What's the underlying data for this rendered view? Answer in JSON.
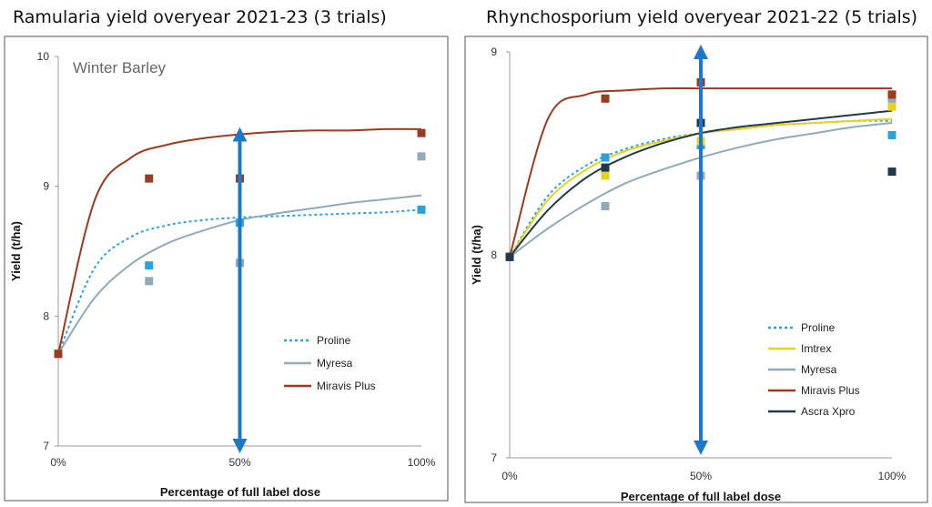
{
  "chart_data": [
    {
      "type": "line",
      "title": "Ramularia yield overyear 2021-23 (3 trials)",
      "annotation": "Winter Barley",
      "xlabel": "Percentage of full label dose",
      "ylabel": "Yield (t/ha)",
      "xlim": [
        0,
        100
      ],
      "ylim": [
        7,
        10
      ],
      "x_ticks": [
        0,
        50,
        100
      ],
      "x_tick_labels": [
        "0%",
        "50%",
        "100%"
      ],
      "y_ticks": [
        7,
        8,
        9,
        10
      ],
      "y_tick_labels": [
        "7",
        "8",
        "9",
        "10"
      ],
      "legend_position": "bottom-right",
      "reference_line": {
        "x": 50,
        "y_range": [
          7,
          9.4
        ],
        "style": "double-arrow",
        "color": "#1a78cf"
      },
      "series": [
        {
          "name": "Proline",
          "color": "#2aa3dc",
          "dash": true,
          "x": [
            0,
            25,
            50,
            100
          ],
          "points": [
            7.71,
            8.39,
            8.72,
            8.82
          ],
          "curve": [
            7.71,
            8.37,
            8.61,
            8.7,
            8.74,
            8.76,
            8.77,
            8.78,
            8.79,
            8.8,
            8.82
          ]
        },
        {
          "name": "Myresa",
          "color": "#8eaabb",
          "dash": false,
          "x": [
            0,
            25,
            50,
            100
          ],
          "points": [
            7.71,
            8.27,
            8.41,
            9.23
          ],
          "curve": [
            7.71,
            8.14,
            8.4,
            8.56,
            8.66,
            8.74,
            8.79,
            8.83,
            8.87,
            8.9,
            8.93
          ]
        },
        {
          "name": "Miravis Plus",
          "color": "#9b3b1e",
          "dash": false,
          "x": [
            0,
            25,
            50,
            100
          ],
          "points": [
            7.71,
            9.06,
            9.06,
            9.41
          ],
          "curve": [
            7.71,
            8.89,
            9.22,
            9.32,
            9.37,
            9.4,
            9.42,
            9.43,
            9.43,
            9.44,
            9.44
          ]
        }
      ]
    },
    {
      "type": "line",
      "title": "Rhynchosporium yield overyear 2021-22 (5 trials)",
      "annotation": "",
      "xlabel": "Percentage of full label dose",
      "ylabel": "Yield (t/ha)",
      "xlim": [
        0,
        100
      ],
      "ylim": [
        7,
        9
      ],
      "x_ticks": [
        0,
        50,
        100
      ],
      "x_tick_labels": [
        "0%",
        "50%",
        "100%"
      ],
      "y_ticks": [
        7,
        8,
        9
      ],
      "y_tick_labels": [
        "7",
        "8",
        "9"
      ],
      "legend_position": "bottom-right",
      "reference_line": {
        "x": 50,
        "y_range": [
          7.05,
          9.0
        ],
        "style": "double-arrow",
        "color": "#1a78cf"
      },
      "series": [
        {
          "name": "Proline",
          "color": "#2aa3dc",
          "dash": true,
          "x": [
            0,
            25,
            50,
            100
          ],
          "points": [
            7.99,
            8.48,
            8.54,
            8.59
          ],
          "curve": [
            7.99,
            8.29,
            8.44,
            8.52,
            8.57,
            8.6,
            8.62,
            8.64,
            8.65,
            8.66,
            8.66
          ]
        },
        {
          "name": "Imtrex",
          "color": "#e8d21f",
          "dash": false,
          "x": [
            0,
            25,
            50,
            100
          ],
          "points": [
            7.99,
            8.39,
            8.56,
            8.73
          ],
          "curve": [
            7.99,
            8.27,
            8.42,
            8.51,
            8.56,
            8.6,
            8.62,
            8.64,
            8.65,
            8.66,
            8.67
          ]
        },
        {
          "name": "Myresa",
          "color": "#8eaabb",
          "dash": false,
          "x": [
            0,
            25,
            50,
            100
          ],
          "points": [
            7.99,
            8.24,
            8.39,
            8.77
          ],
          "curve": [
            7.99,
            8.13,
            8.25,
            8.35,
            8.42,
            8.48,
            8.53,
            8.57,
            8.6,
            8.63,
            8.65
          ]
        },
        {
          "name": "Miravis Plus",
          "color": "#9b3b1e",
          "dash": false,
          "x": [
            0,
            25,
            50,
            100
          ],
          "points": [
            7.99,
            8.77,
            8.85,
            8.79
          ],
          "curve": [
            7.99,
            8.67,
            8.79,
            8.81,
            8.82,
            8.82,
            8.82,
            8.82,
            8.82,
            8.82,
            8.82
          ]
        },
        {
          "name": "Ascra Xpro",
          "color": "#203a4c",
          "dash": false,
          "x": [
            0,
            25,
            50,
            100
          ],
          "points": [
            7.99,
            8.43,
            8.65,
            8.41
          ],
          "curve": [
            7.99,
            8.22,
            8.38,
            8.48,
            8.55,
            8.6,
            8.63,
            8.65,
            8.67,
            8.69,
            8.71
          ]
        }
      ]
    }
  ]
}
